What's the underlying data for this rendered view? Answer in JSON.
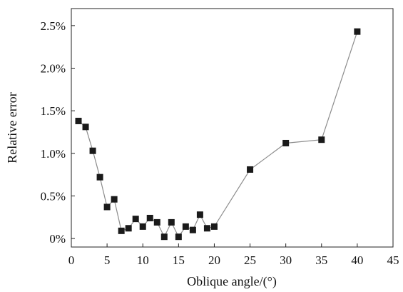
{
  "chart_data": {
    "type": "line",
    "xlabel": "Oblique angle/(°)",
    "ylabel": "Relative error",
    "xlim": [
      0,
      45
    ],
    "ylim": [
      -0.1,
      2.7
    ],
    "xticks": [
      0,
      5,
      10,
      15,
      20,
      25,
      30,
      35,
      40,
      45
    ],
    "xtick_labels": [
      "0",
      "5",
      "10",
      "15",
      "20",
      "25",
      "30",
      "35",
      "40",
      "45"
    ],
    "yticks": [
      0,
      0.5,
      1.0,
      1.5,
      2.0,
      2.5
    ],
    "ytick_labels": [
      "0%",
      "0.5%",
      "1.0%",
      "1.5%",
      "2.0%",
      "2.5%"
    ],
    "grid": false,
    "marker": "square",
    "colors": {
      "line": "#8c8c8c",
      "marker": "#1a1a1a",
      "axis": "#222222"
    },
    "series": [
      {
        "x": [
          1,
          2,
          3,
          4,
          5,
          6,
          7,
          8,
          9,
          10,
          11,
          12,
          13,
          14,
          15,
          16,
          17,
          18,
          19,
          20,
          25,
          30,
          35,
          40
        ],
        "values": [
          1.38,
          1.31,
          1.03,
          0.72,
          0.37,
          0.46,
          0.09,
          0.12,
          0.23,
          0.14,
          0.24,
          0.19,
          0.02,
          0.19,
          0.02,
          0.14,
          0.1,
          0.28,
          0.12,
          0.14,
          0.81,
          1.12,
          1.16,
          2.43
        ]
      }
    ]
  }
}
